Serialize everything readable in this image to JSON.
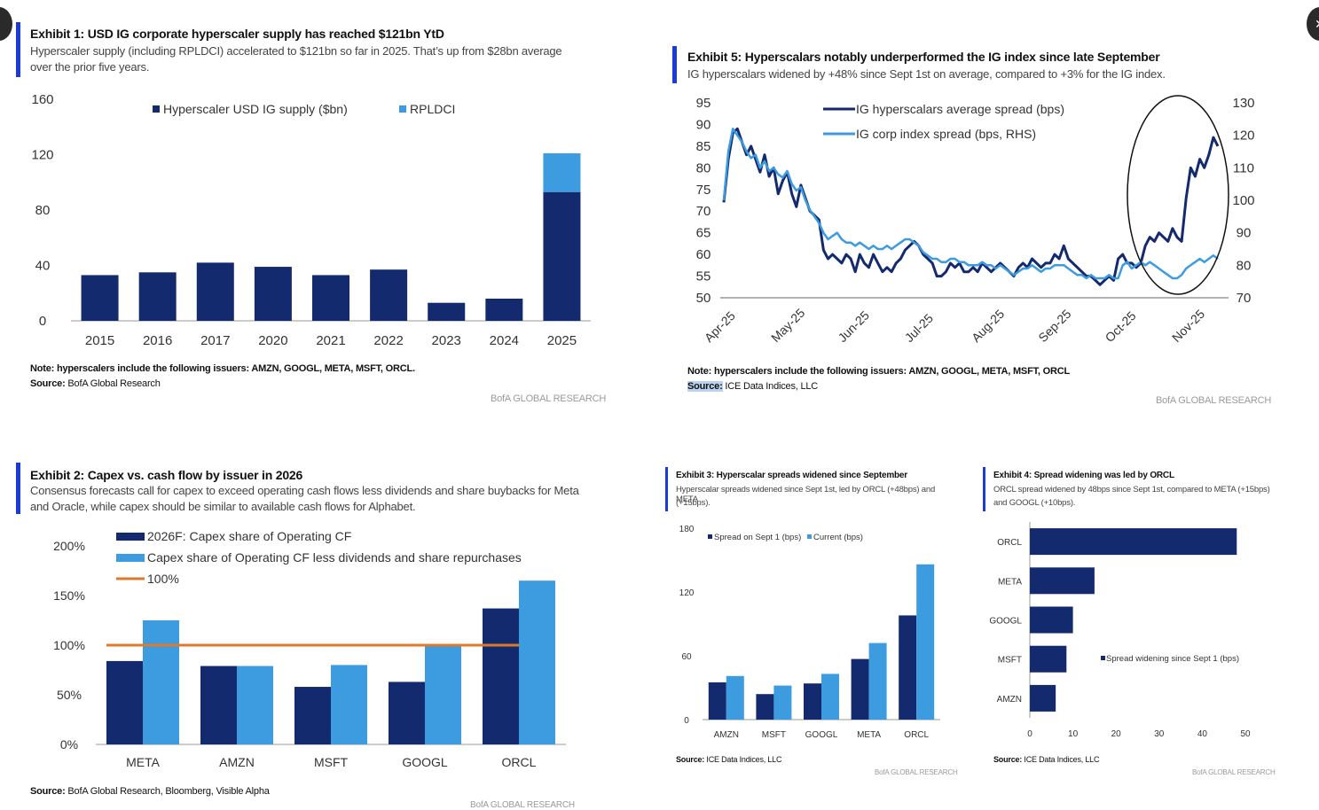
{
  "nav": {
    "close_glyph": "✕"
  },
  "exhibit1": {
    "title": "Exhibit 1: USD IG corporate hyperscaler supply has reached $121bn YtD",
    "subtitle1": "Hyperscaler supply (including RPLDCI) accelerated to $121bn so far in 2025.  That’s up from $28bn average",
    "subtitle2": "over the prior five years.",
    "note_label": "Note: hyperscalers include the following issuers:  AMZN, GOOGL, META, MSFT, ORCL.",
    "source_label": "Source:",
    "source_text": " BofA Global Research",
    "bofa": "BofA GLOBAL RESEARCH"
  },
  "exhibit5": {
    "title": "Exhibit 5: Hyperscalars notably underperformed the IG index since late September",
    "subtitle": "IG hyperscalars widened by +48% since Sept 1st on average, compared to +3% for the IG index.",
    "note_label": "Note: hyperscalers include the following issuers:  AMZN, GOOGL, META, MSFT, ORCL",
    "source_label": "Source:",
    "source_text": " ICE Data Indices, LLC",
    "bofa": "BofA GLOBAL RESEARCH"
  },
  "exhibit2": {
    "title": "Exhibit 2: Capex vs. cash flow by issuer in 2026",
    "subtitle1": "Consensus forecasts call for capex to exceed operating cash flows less dividends and share buybacks for Meta",
    "subtitle2": "and Oracle, while capex should be similar to available cash flows for Alphabet.",
    "source_label": "Source:",
    "source_text": " BofA Global Research, Bloomberg, Visible Alpha",
    "bofa": "BofA GLOBAL RESEARCH"
  },
  "exhibit3": {
    "title": "Exhibit 3: Hyperscalar spreads widened since September",
    "subtitle1": "Hyperscalar spreads widened since Sept 1st, led by ORCL (+48bps) and META",
    "subtitle2": "(+15bps).",
    "source_label": "Source:",
    "source_text": " ICE Data Indices, LLC",
    "bofa": "BofA GLOBAL RESEARCH"
  },
  "exhibit4": {
    "title": "Exhibit 4: Spread widening was led by ORCL",
    "subtitle1": "ORCL spread widened by 48bps since Sept 1st, compared to META (+15bps)",
    "subtitle2": "and GOOGL (+10bps).",
    "source_label": "Source:",
    "source_text": " ICE Data Indices, LLC",
    "bofa": "BofA GLOBAL RESEARCH"
  },
  "colors": {
    "navy": "#142a6e",
    "light": "#3d9be0",
    "orange": "#e07a2b",
    "accent": "#1b3bd6",
    "axis": "#999999"
  },
  "chart_data": [
    {
      "id": "exhibit1",
      "type": "bar",
      "stacked": true,
      "categories": [
        "2015",
        "2016",
        "2017",
        "2020",
        "2021",
        "2022",
        "2023",
        "2024",
        "2025"
      ],
      "series": [
        {
          "name": "Hyperscaler USD IG supply ($bn)",
          "values": [
            33,
            35,
            42,
            39,
            33,
            37,
            13,
            16,
            93
          ],
          "color": "#142a6e"
        },
        {
          "name": "RPLDCI",
          "values": [
            0,
            0,
            0,
            0,
            0,
            0,
            0,
            0,
            28
          ],
          "color": "#3d9be0"
        }
      ],
      "ylim": [
        0,
        160
      ],
      "yticks": [
        0,
        40,
        80,
        120,
        160
      ],
      "legend": "top"
    },
    {
      "id": "exhibit5",
      "type": "line",
      "x_ticks": [
        "Apr-25",
        "May-25",
        "Jun-25",
        "Jul-25",
        "Aug-25",
        "Sep-25",
        "Oct-25",
        "Nov-25"
      ],
      "yticks_left": [
        50,
        55,
        60,
        65,
        70,
        75,
        80,
        85,
        90,
        95
      ],
      "ylim_left": [
        50,
        95
      ],
      "yticks_right": [
        70,
        80,
        90,
        100,
        110,
        120,
        130
      ],
      "ylim_right": [
        70,
        130
      ],
      "legend": "top-center",
      "series": [
        {
          "name": "IG hyperscalars average spread (bps)",
          "axis": "left",
          "color": "#142a6e",
          "values": [
            72,
            82,
            88,
            89,
            86,
            83,
            85,
            82,
            79,
            83,
            78,
            80,
            74,
            77,
            79,
            74,
            71,
            76,
            73,
            70,
            69,
            68,
            61,
            59,
            60,
            59,
            58,
            60,
            59,
            56,
            60,
            58,
            57,
            60,
            58,
            56,
            57,
            56,
            58,
            59,
            61,
            62,
            63,
            62,
            60,
            59,
            58,
            55,
            55,
            56,
            58,
            57,
            58,
            56,
            56,
            57,
            56,
            58,
            57,
            56,
            57,
            58,
            57,
            56,
            55,
            57,
            58,
            57,
            59,
            58,
            57,
            58,
            58,
            60,
            59,
            62,
            59,
            58,
            57,
            56,
            55,
            55,
            54,
            53,
            54,
            55,
            54,
            59,
            60,
            58,
            58,
            57,
            58,
            62,
            64,
            63,
            65,
            64,
            63,
            66,
            64,
            63,
            73,
            80,
            78,
            82,
            80,
            83,
            87,
            85
          ]
        },
        {
          "name": "IG corp index spread (bps, RHS)",
          "axis": "right",
          "color": "#3d9be0",
          "values": [
            100,
            115,
            122,
            120,
            118,
            115,
            113,
            114,
            110,
            112,
            109,
            110,
            108,
            107,
            109,
            105,
            103,
            104,
            100,
            97,
            95,
            93,
            90,
            88,
            89,
            90,
            88,
            87,
            87,
            86,
            87,
            86,
            85,
            86,
            85,
            85,
            86,
            85,
            86,
            87,
            88,
            88,
            87,
            86,
            84,
            83,
            82,
            82,
            81,
            81,
            82,
            82,
            81,
            81,
            80,
            80,
            80,
            81,
            80,
            80,
            79,
            80,
            79,
            78,
            77,
            78,
            79,
            79,
            80,
            79,
            78,
            79,
            79,
            80,
            80,
            80,
            79,
            78,
            77,
            77,
            76,
            77,
            76,
            76,
            76,
            77,
            76,
            76,
            80,
            81,
            79,
            80,
            81,
            80,
            81,
            80,
            79,
            78,
            77,
            76,
            76,
            77,
            79,
            80,
            81,
            82,
            81,
            82,
            83,
            82
          ]
        }
      ],
      "annotation": "ellipse"
    },
    {
      "id": "exhibit2",
      "type": "bar",
      "categories": [
        "META",
        "AMZN",
        "MSFT",
        "GOOGL",
        "ORCL"
      ],
      "series": [
        {
          "name": "2026F: Capex share of Operating CF",
          "values": [
            84,
            79,
            58,
            63,
            137
          ],
          "color": "#142a6e"
        },
        {
          "name": "Capex share of Operating CF less dividends and share repurchases",
          "values": [
            125,
            79,
            80,
            100,
            165
          ],
          "color": "#3d9be0"
        },
        {
          "name": "100%",
          "values": [
            100,
            100,
            100,
            100,
            100
          ],
          "color": "#e07a2b",
          "kind": "line"
        }
      ],
      "ylim": [
        0,
        200
      ],
      "ytick_labels": [
        "0%",
        "50%",
        "100%",
        "150%",
        "200%"
      ],
      "legend": "top-left"
    },
    {
      "id": "exhibit3",
      "type": "bar",
      "categories": [
        "AMZN",
        "MSFT",
        "GOOGL",
        "META",
        "ORCL"
      ],
      "series": [
        {
          "name": "Spread on Sept 1 (bps)",
          "values": [
            35,
            24,
            34,
            57,
            98
          ],
          "color": "#142a6e"
        },
        {
          "name": "Current (bps)",
          "values": [
            41,
            32,
            43,
            72,
            146
          ],
          "color": "#3d9be0"
        }
      ],
      "ylim": [
        0,
        180
      ],
      "yticks": [
        0,
        60,
        120,
        180
      ],
      "legend": "top"
    },
    {
      "id": "exhibit4",
      "type": "bar",
      "orientation": "horizontal",
      "categories": [
        "ORCL",
        "META",
        "GOOGL",
        "MSFT",
        "AMZN"
      ],
      "series": [
        {
          "name": "Spread widening since Sept 1 (bps)",
          "values": [
            48,
            15,
            10,
            8.5,
            6
          ],
          "color": "#142a6e"
        }
      ],
      "xlim": [
        0,
        50
      ],
      "xticks": [
        0,
        10,
        20,
        30,
        40,
        50
      ],
      "legend": "right"
    }
  ]
}
